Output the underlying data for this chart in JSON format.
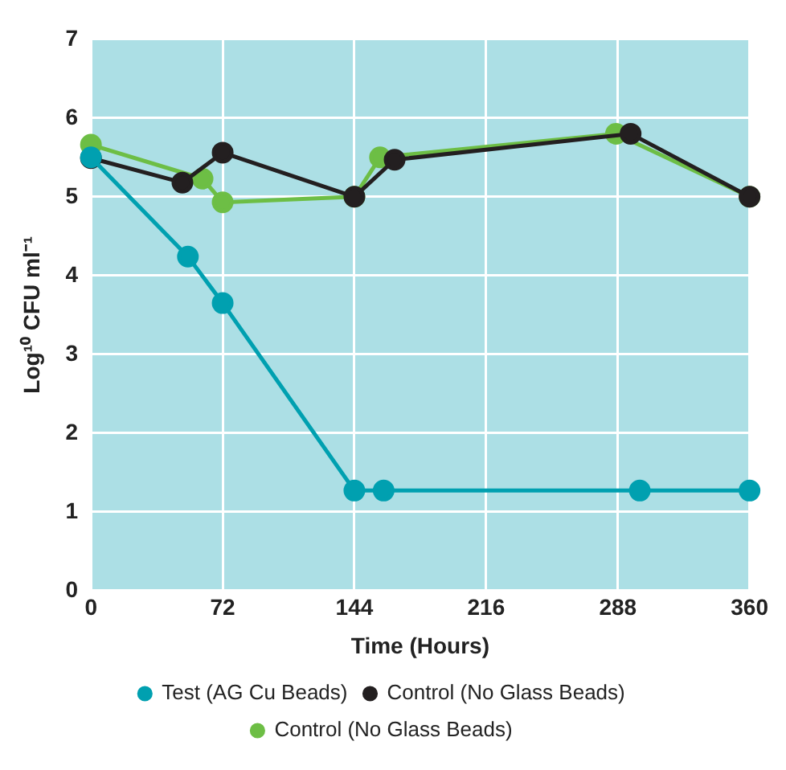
{
  "chart_data": {
    "type": "line",
    "xlabel": "Time (Hours)",
    "ylabel": "Log¹⁰ CFU ml⁻¹",
    "xlim": [
      0,
      360
    ],
    "xticks": [
      0,
      72,
      144,
      216,
      288,
      360
    ],
    "ylim": [
      0,
      7
    ],
    "yticks": [
      0,
      1,
      2,
      3,
      4,
      5,
      6,
      7
    ],
    "grid": true,
    "legend": "bottom",
    "marker": "circle",
    "line_style": "solid",
    "series": [
      {
        "name": "Test (AG Cu Beads)",
        "color": "#00a0b0",
        "x": [
          0,
          53,
          72,
          144,
          160,
          300,
          360
        ],
        "values": [
          5.5,
          4.24,
          3.65,
          1.27,
          1.27,
          1.27,
          1.27
        ]
      },
      {
        "name": "Control (No Glass Beads)",
        "color": "#231f20",
        "x": [
          0,
          50,
          72,
          144,
          166,
          295,
          360
        ],
        "values": [
          5.49,
          5.18,
          5.56,
          5,
          5.47,
          5.8,
          5
        ]
      },
      {
        "name": "Control (No Glass Beads)",
        "color": "#6dbe45",
        "x": [
          0,
          61,
          72,
          144,
          158,
          287,
          360
        ],
        "values": [
          5.66,
          5.23,
          4.93,
          5,
          5.5,
          5.8,
          5
        ]
      }
    ]
  }
}
